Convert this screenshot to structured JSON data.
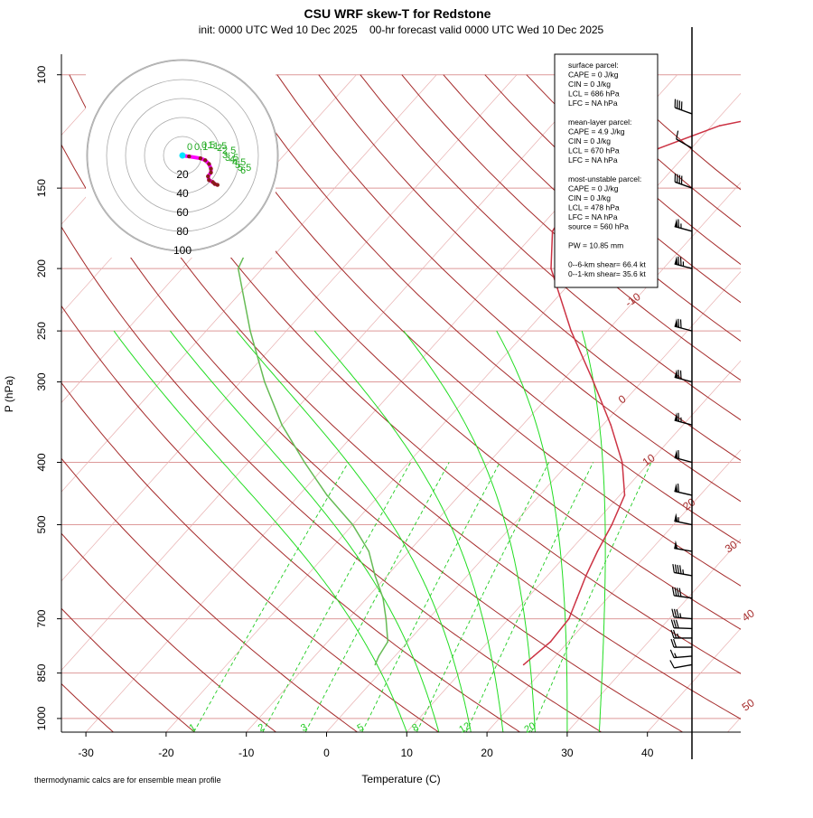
{
  "chart_data": {
    "type": "skew-t",
    "title": "CSU WRF skew-T for Redstone",
    "subtitle": "init: 0000 UTC Wed 10 Dec 2025    00-hr forecast valid 0000 UTC Wed 10 Dec 2025",
    "xlabel": "Temperature (C)",
    "ylabel": "P (hPa)",
    "footnote": "thermodynamic calcs are for ensemble mean profile",
    "xlim": [
      -33,
      52
    ],
    "ylim": [
      1050,
      100
    ],
    "x_ticks": [
      "-30",
      "-20",
      "-10",
      "0",
      "10",
      "20",
      "30",
      "40"
    ],
    "y_ticks": [
      "100",
      "150",
      "200",
      "250",
      "300",
      "400",
      "500",
      "700",
      "850",
      "1000"
    ],
    "isotherm_labels": [
      "-10",
      "0",
      "10",
      "20",
      "30",
      "40",
      "50"
    ],
    "mixing_ratio_labels": [
      "1",
      "2",
      "3",
      "5",
      "8",
      "12",
      "20"
    ],
    "hodograph": {
      "ring_labels": [
        "20",
        "40",
        "60",
        "80",
        "100"
      ],
      "height_labels": [
        "0",
        "0.1",
        "0.5",
        "1",
        "1.5",
        "2",
        "2.5",
        "3",
        "3.5",
        "4",
        "4.5",
        "5",
        "5.5",
        "6"
      ],
      "points": [
        {
          "u": -1,
          "v": 0
        },
        {
          "u": 7,
          "v": -1
        },
        {
          "u": 19,
          "v": -3
        },
        {
          "u": 24,
          "v": -5
        },
        {
          "u": 28,
          "v": -9
        },
        {
          "u": 30,
          "v": -14
        },
        {
          "u": 30,
          "v": -18
        },
        {
          "u": 27,
          "v": -22
        },
        {
          "u": 28,
          "v": -26
        },
        {
          "u": 32,
          "v": -28
        },
        {
          "u": 34,
          "v": -30
        },
        {
          "u": 37,
          "v": -31
        }
      ],
      "colors": [
        "#ff00ff",
        "#8b1a1a",
        "#22aa22",
        "#00e5ff"
      ]
    },
    "series": [
      {
        "name": "",
        "color": "#cc3344",
        "points": [
          {
            "p": 825,
            "t": 17.0
          },
          {
            "p": 800,
            "t": 17.3
          },
          {
            "p": 760,
            "t": 17.8
          },
          {
            "p": 700,
            "t": 17.5
          },
          {
            "p": 650,
            "t": 16.2
          },
          {
            "p": 600,
            "t": 14.8
          },
          {
            "p": 550,
            "t": 13.5
          },
          {
            "p": 500,
            "t": 12.3
          },
          {
            "p": 450,
            "t": 10.6
          },
          {
            "p": 400,
            "t": 6.6
          },
          {
            "p": 350,
            "t": 1.0
          },
          {
            "p": 300,
            "t": -6.0
          },
          {
            "p": 250,
            "t": -14.5
          },
          {
            "p": 200,
            "t": -24.0
          },
          {
            "p": 175,
            "t": -28.0
          },
          {
            "p": 150,
            "t": -29.5
          },
          {
            "p": 140,
            "t": -27.0
          },
          {
            "p": 130,
            "t": -24.0
          },
          {
            "p": 120,
            "t": -19.0
          },
          {
            "p": 115,
            "t": -13.0
          }
        ]
      },
      {
        "name": "",
        "color": "#66bb55",
        "points": [
          {
            "p": 825,
            "t": -1.5
          },
          {
            "p": 800,
            "t": -2.0
          },
          {
            "p": 760,
            "t": -2.5
          },
          {
            "p": 700,
            "t": -5.3
          },
          {
            "p": 650,
            "t": -8.0
          },
          {
            "p": 600,
            "t": -11.5
          },
          {
            "p": 550,
            "t": -15.0
          },
          {
            "p": 500,
            "t": -20.0
          },
          {
            "p": 450,
            "t": -26.5
          },
          {
            "p": 400,
            "t": -33.0
          },
          {
            "p": 350,
            "t": -40.0
          },
          {
            "p": 300,
            "t": -47.0
          },
          {
            "p": 250,
            "t": -54.5
          },
          {
            "p": 200,
            "t": -63.0
          },
          {
            "p": 175,
            "t": -65.0
          }
        ]
      }
    ],
    "winds_kt": [
      {
        "p": 825,
        "spd": 10,
        "dir": 260
      },
      {
        "p": 800,
        "spd": 15,
        "dir": 265
      },
      {
        "p": 775,
        "spd": 20,
        "dir": 270
      },
      {
        "p": 750,
        "spd": 25,
        "dir": 270
      },
      {
        "p": 725,
        "spd": 30,
        "dir": 272
      },
      {
        "p": 700,
        "spd": 35,
        "dir": 275
      },
      {
        "p": 650,
        "spd": 40,
        "dir": 278
      },
      {
        "p": 600,
        "spd": 45,
        "dir": 280
      },
      {
        "p": 550,
        "spd": 50,
        "dir": 280
      },
      {
        "p": 500,
        "spd": 55,
        "dir": 282
      },
      {
        "p": 450,
        "spd": 60,
        "dir": 283
      },
      {
        "p": 400,
        "spd": 60,
        "dir": 285
      },
      {
        "p": 350,
        "spd": 65,
        "dir": 285
      },
      {
        "p": 300,
        "spd": 70,
        "dir": 285
      },
      {
        "p": 250,
        "spd": 70,
        "dir": 285
      },
      {
        "p": 200,
        "spd": 75,
        "dir": 285
      },
      {
        "p": 175,
        "spd": 65,
        "dir": 285
      },
      {
        "p": 150,
        "spd": 40,
        "dir": 290
      },
      {
        "p": 130,
        "spd": 10,
        "dir": 300
      },
      {
        "p": 115,
        "spd": 40,
        "dir": 290
      }
    ],
    "info_box": [
      "surface parcel:",
      "CAPE = 0 J/kg",
      "CIN = 0 J/kg",
      "LCL = 686 hPa",
      "LFC = NA hPa",
      "",
      "mean-layer parcel:",
      "CAPE = 4.9 J/kg",
      "CIN = 0 J/kg",
      "LCL = 670 hPa",
      "LFC = NA hPa",
      "",
      "most-unstable parcel:",
      "CAPE = 0 J/kg",
      "CIN = 0 J/kg",
      "LCL = 478 hPa",
      "LFC = NA hPa",
      "source = 560 hPa",
      "",
      "PW =  10.85 mm",
      "",
      "0--6-km shear= 66.4 kt",
      "0--1-km shear= 35.6 kt"
    ]
  }
}
